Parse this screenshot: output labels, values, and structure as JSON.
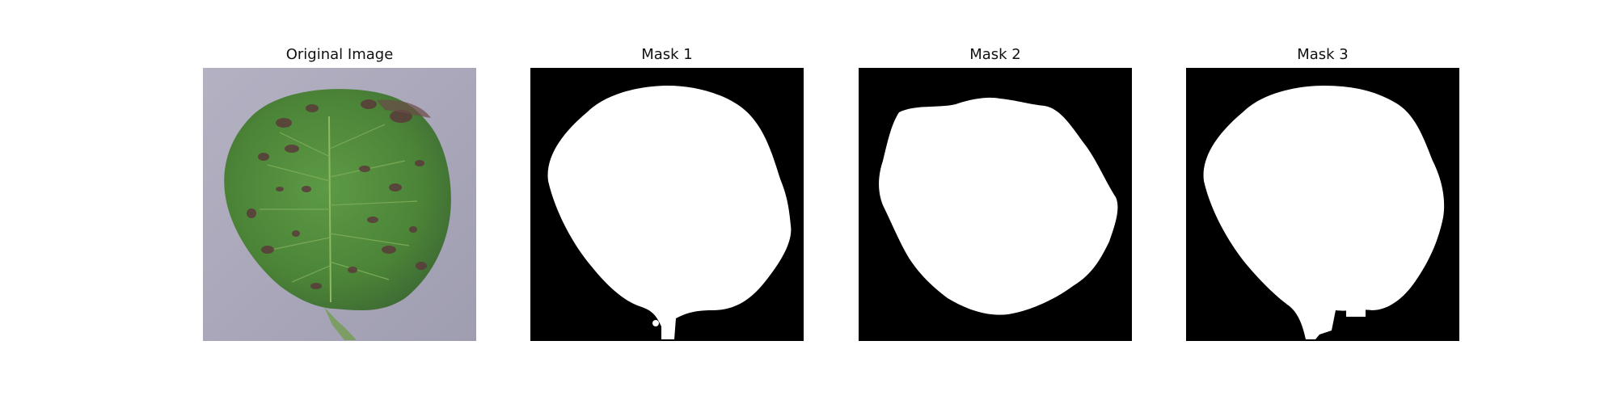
{
  "panels": [
    {
      "title": "Original Image",
      "kind": "photo"
    },
    {
      "title": "Mask 1",
      "kind": "mask"
    },
    {
      "title": "Mask 2",
      "kind": "mask"
    },
    {
      "title": "Mask 3",
      "kind": "mask"
    }
  ],
  "colors": {
    "background": "#ffffff",
    "photo_background": "#a9a7b6",
    "leaf_green": "#4f8a3c",
    "leaf_spot": "#5a3b3a",
    "mask_background": "#000000",
    "mask_foreground": "#ffffff"
  }
}
